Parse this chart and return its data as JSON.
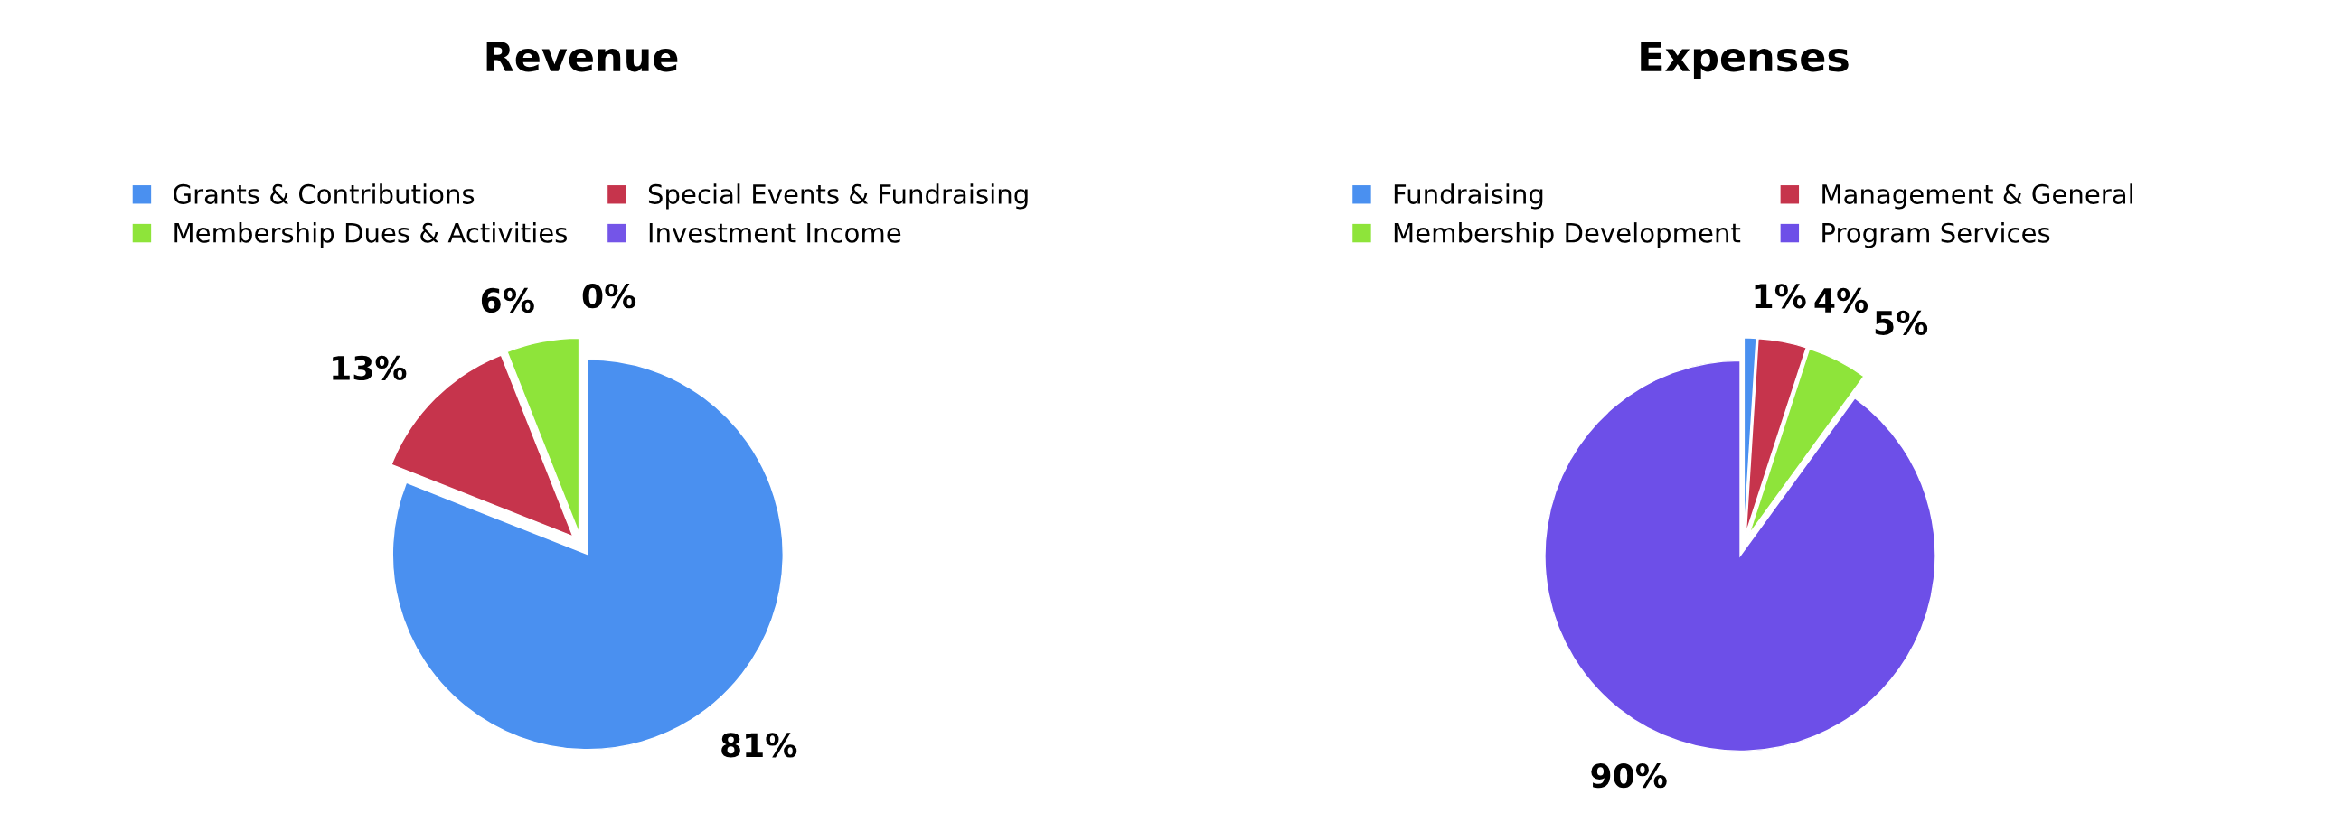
{
  "chart_data": [
    {
      "type": "pie",
      "title": "Revenue",
      "categories": [
        "Grants & Contributions",
        "Special Events & Fundraising",
        "Membership Dues & Activities",
        "Investment Income"
      ],
      "values": [
        81,
        13,
        6,
        0
      ],
      "colors": [
        "#4a90f0",
        "#c6344c",
        "#8ee43a",
        "#7455e8"
      ],
      "value_labels": [
        "81%",
        "13%",
        "6%",
        "0%"
      ],
      "legend": "top"
    },
    {
      "type": "pie",
      "title": "Expenses",
      "categories": [
        "Fundraising",
        "Management & General",
        "Membership Development",
        "Program Services"
      ],
      "values": [
        1,
        4,
        5,
        90
      ],
      "colors": [
        "#4a90f0",
        "#c6344c",
        "#8ee43a",
        "#6d4fe8"
      ],
      "value_labels": [
        "1%",
        "4%",
        "5%",
        "90%"
      ],
      "legend": "top"
    }
  ]
}
